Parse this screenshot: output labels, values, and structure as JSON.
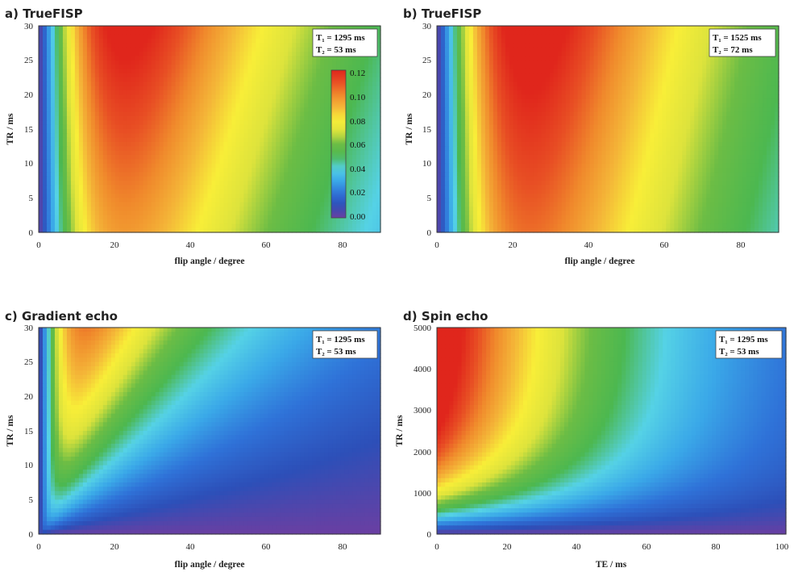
{
  "colormap": [
    "#6a3fa2",
    "#2d4fb8",
    "#2f72d8",
    "#3aa8e8",
    "#55d2e6",
    "#4cb850",
    "#6cbd45",
    "#dde33c",
    "#f8ee38",
    "#f4b638",
    "#f08a2c",
    "#e84f24",
    "#e0261c"
  ],
  "chart_data": [
    {
      "type": "heatmap",
      "title": "a) TrueFISP",
      "xlabel": "flip angle / degree",
      "ylabel": "TR / ms",
      "xlim": [
        0,
        90
      ],
      "ylim": [
        0,
        30
      ],
      "xticks": [
        "0",
        "20",
        "40",
        "60",
        "80"
      ],
      "yticks": [
        "0",
        "5",
        "10",
        "15",
        "20",
        "25",
        "30"
      ],
      "params": {
        "t1": "T₁ = 1295 ms",
        "t2": "T₂ = 53 ms"
      },
      "model": "truefisp",
      "T1": 1295,
      "T2": 53,
      "colorbar": {
        "min": 0.0,
        "max": 0.12,
        "ticks": [
          "0.12",
          "0.10",
          "0.08",
          "0.06",
          "0.04",
          "0.02",
          "0.00"
        ]
      }
    },
    {
      "type": "heatmap",
      "title": "b) TrueFISP",
      "xlabel": "flip angle / degree",
      "ylabel": "TR / ms",
      "xlim": [
        0,
        90
      ],
      "ylim": [
        0,
        30
      ],
      "xticks": [
        "0",
        "20",
        "40",
        "60",
        "80"
      ],
      "yticks": [
        "0",
        "5",
        "10",
        "15",
        "20",
        "25",
        "30"
      ],
      "params": {
        "t1": "T₁ = 1525 ms",
        "t2": "T₂ = 72 ms"
      },
      "model": "truefisp",
      "T1": 1525,
      "T2": 72
    },
    {
      "type": "heatmap",
      "title": "c) Gradient echo",
      "xlabel": "flip angle / degree",
      "ylabel": "TR / ms",
      "xlim": [
        0,
        90
      ],
      "ylim": [
        0,
        30
      ],
      "xticks": [
        "0",
        "20",
        "40",
        "60",
        "80"
      ],
      "yticks": [
        "0",
        "5",
        "10",
        "15",
        "20",
        "25",
        "30"
      ],
      "params": {
        "t1": "T₁ = 1295 ms",
        "t2": "T₂ = 53 ms"
      },
      "model": "gradientecho",
      "T1": 1295,
      "T2": 53
    },
    {
      "type": "heatmap",
      "title": "d) Spin echo",
      "xlabel": "TE / ms",
      "ylabel": "TR / ms",
      "xlim": [
        0,
        100
      ],
      "ylim": [
        0,
        5000
      ],
      "xticks": [
        "0",
        "20",
        "40",
        "60",
        "80",
        "100"
      ],
      "yticks": [
        "0",
        "1000",
        "2000",
        "3000",
        "4000",
        "5000"
      ],
      "params": {
        "t1": "T₁ = 1295 ms",
        "t2": "T₂ = 53 ms"
      },
      "model": "spinecho",
      "T1": 1295,
      "T2": 53
    }
  ]
}
